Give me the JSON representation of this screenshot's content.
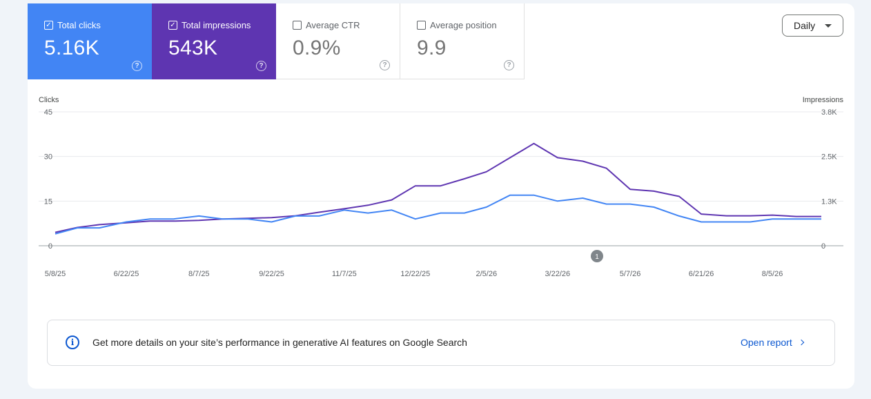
{
  "metrics": {
    "clicks": {
      "label": "Total clicks",
      "value": "5.16K",
      "checked": true,
      "color": "#4285f4"
    },
    "impressions": {
      "label": "Total impressions",
      "value": "543K",
      "checked": true,
      "color": "#5e35b1"
    },
    "ctr": {
      "label": "Average CTR",
      "value": "0.9%",
      "checked": false
    },
    "position": {
      "label": "Average position",
      "value": "9.9",
      "checked": false
    }
  },
  "granularity": {
    "selected": "Daily"
  },
  "annotation_marker": "1",
  "banner": {
    "message": "Get more details on your site’s performance in generative AI features on Google Search",
    "link_label": "Open report"
  },
  "chart_data": {
    "type": "line",
    "left_axis": {
      "title": "Clicks",
      "ticks": [
        "45",
        "30",
        "15",
        "0"
      ],
      "range": [
        0,
        45
      ]
    },
    "right_axis": {
      "title": "Impressions",
      "ticks": [
        "3.8K",
        "2.5K",
        "1.3K",
        "0"
      ],
      "range": [
        0,
        3800
      ]
    },
    "x_tick_labels": [
      "5/8/25",
      "6/22/25",
      "8/7/25",
      "9/22/25",
      "11/7/25",
      "12/22/25",
      "2/5/26",
      "3/22/26",
      "5/7/26",
      "6/21/26",
      "8/5/26"
    ],
    "x_range": [
      "5/8/25",
      "9/5/26"
    ],
    "grid": true,
    "series": [
      {
        "name": "Clicks",
        "color": "#4285f4",
        "axis": "left",
        "x": [
          "5/8/25",
          "5/22/25",
          "6/5/25",
          "6/22/25",
          "7/7/25",
          "7/22/25",
          "8/7/25",
          "8/22/25",
          "9/7/25",
          "9/22/25",
          "10/7/25",
          "10/22/25",
          "11/7/25",
          "11/22/25",
          "12/7/25",
          "12/22/25",
          "1/7/26",
          "1/22/26",
          "2/5/26",
          "2/20/26",
          "3/7/26",
          "3/22/26",
          "4/7/26",
          "4/22/26",
          "5/7/26",
          "5/22/26",
          "6/7/26",
          "6/21/26",
          "7/7/26",
          "7/22/26",
          "8/5/26",
          "8/20/26",
          "9/5/26"
        ],
        "values": [
          4,
          6,
          6,
          8,
          9,
          9,
          10,
          9,
          9,
          8,
          10,
          10,
          12,
          11,
          12,
          9,
          11,
          11,
          13,
          17,
          17,
          15,
          16,
          14,
          14,
          13,
          10,
          8,
          8,
          8,
          9,
          9,
          9
        ]
      },
      {
        "name": "Impressions",
        "color": "#5e35b1",
        "axis": "right",
        "x": [
          "5/8/25",
          "5/22/25",
          "6/5/25",
          "6/22/25",
          "7/7/25",
          "7/22/25",
          "8/7/25",
          "8/22/25",
          "9/7/25",
          "9/22/25",
          "10/7/25",
          "10/22/25",
          "11/7/25",
          "11/22/25",
          "12/7/25",
          "12/22/25",
          "1/7/26",
          "1/22/26",
          "2/5/26",
          "2/20/26",
          "3/7/26",
          "3/22/26",
          "4/7/26",
          "4/22/26",
          "5/7/26",
          "5/22/26",
          "6/7/26",
          "6/21/26",
          "7/7/26",
          "7/22/26",
          "8/5/26",
          "8/20/26",
          "9/5/26"
        ],
        "values": [
          380,
          520,
          600,
          650,
          700,
          700,
          720,
          760,
          780,
          800,
          850,
          950,
          1050,
          1150,
          1300,
          1700,
          1700,
          1900,
          2100,
          2500,
          2900,
          2500,
          2400,
          2200,
          1600,
          1550,
          1400,
          900,
          850,
          850,
          870,
          830,
          830
        ]
      }
    ]
  }
}
